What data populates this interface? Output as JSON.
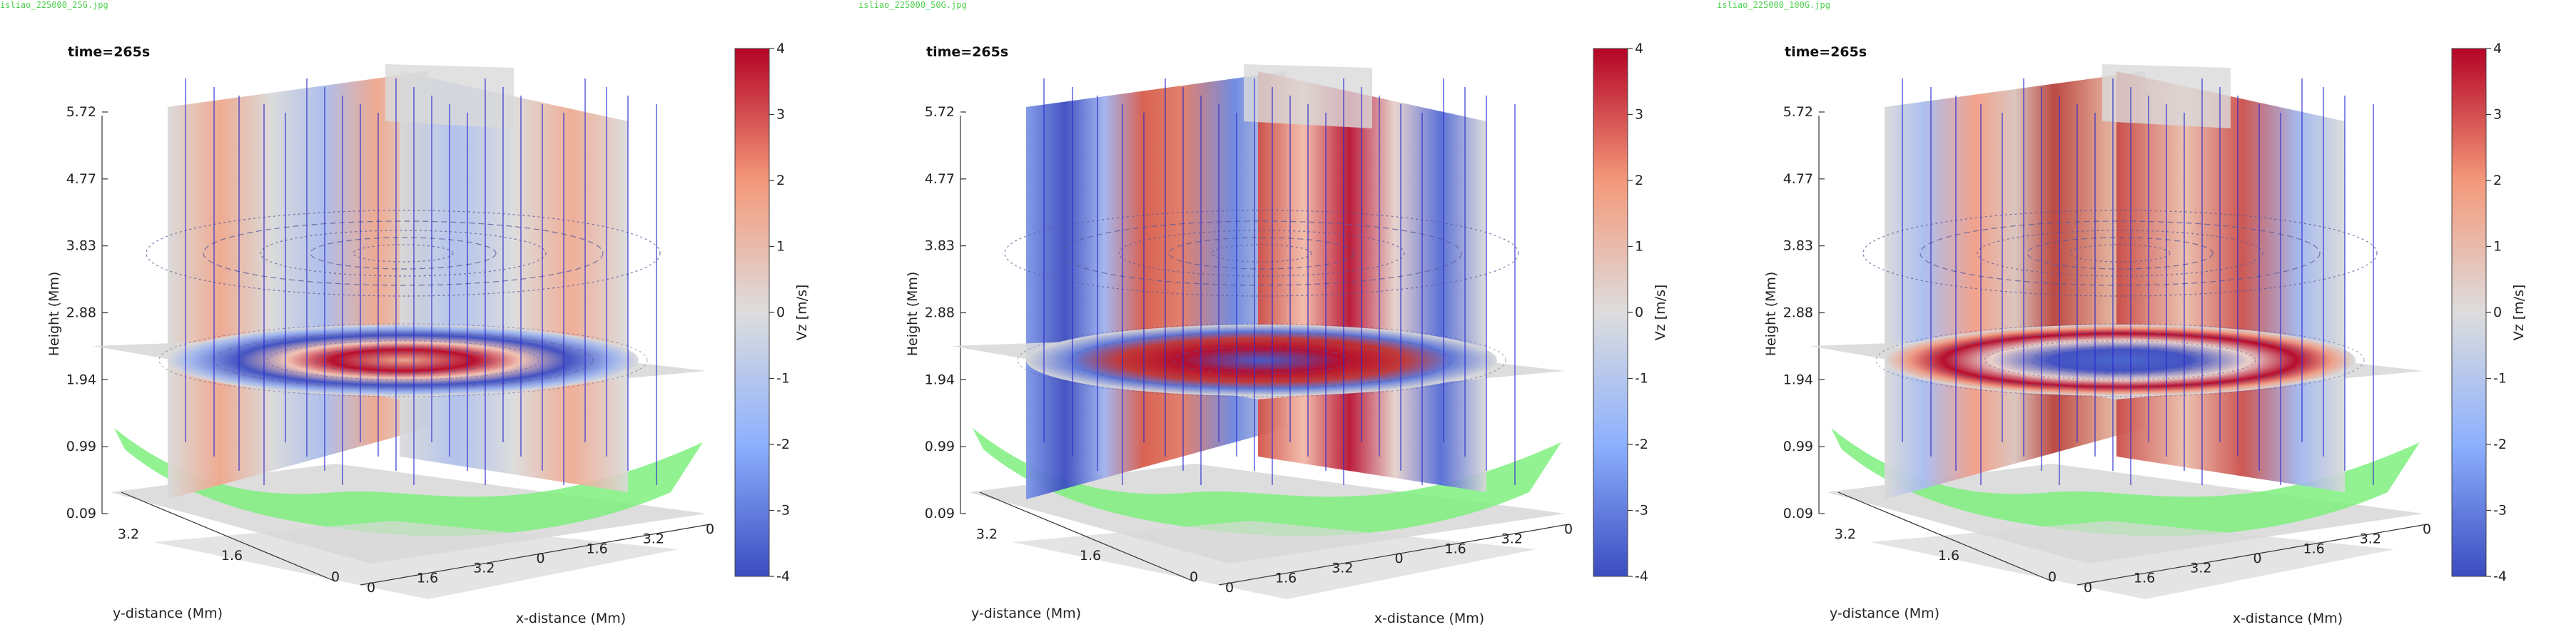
{
  "colors": {
    "cmap_low": "#3b4cc0",
    "cmap_mid": "#dddddd",
    "cmap_high": "#b40426",
    "plane_gray": "#d9d9d9",
    "iso_green": "#7ff07f",
    "field_lines": "#2a2ad0",
    "filename_green": "#4fd14f"
  },
  "chart_data": [
    {
      "type": "3d-volume-slices",
      "filename": "isliao_225000_25G.jpg",
      "time_label": "time=265s",
      "zlabel": "Height (Mm)",
      "xlabel": "x-distance (Mm)",
      "ylabel": "y-distance (Mm)",
      "z_ticks": [
        "0.09",
        "0.99",
        "1.94",
        "2.88",
        "3.83",
        "4.77",
        "5.72"
      ],
      "x_ticks": [
        "0",
        "1.6",
        "3.2",
        "0",
        "1.6",
        "3.2",
        "0"
      ],
      "y_ticks": [
        "3.2",
        "1.6",
        "0"
      ],
      "colorbar": {
        "label": "Vz [m/s]",
        "ticks": [
          "-4",
          "-3",
          "-2",
          "-1",
          "0",
          "1",
          "2",
          "3",
          "4"
        ],
        "range": [
          -4,
          4
        ]
      },
      "pattern": "ring"
    },
    {
      "type": "3d-volume-slices",
      "filename": "isliao_225000_50G.jpg",
      "time_label": "time=265s",
      "zlabel": "Height (Mm)",
      "xlabel": "x-distance (Mm)",
      "ylabel": "y-distance (Mm)",
      "z_ticks": [
        "0.09",
        "0.99",
        "1.94",
        "2.88",
        "3.83",
        "4.77",
        "5.72"
      ],
      "x_ticks": [
        "0",
        "1.6",
        "3.2",
        "0",
        "1.6",
        "3.2",
        "0"
      ],
      "y_ticks": [
        "3.2",
        "1.6",
        "0"
      ],
      "colorbar": {
        "label": "Vz [m/s]",
        "ticks": [
          "-4",
          "-3",
          "-2",
          "-1",
          "0",
          "1",
          "2",
          "3",
          "4"
        ],
        "range": [
          -4,
          4
        ]
      },
      "pattern": "checker"
    },
    {
      "type": "3d-volume-slices",
      "filename": "isliao_225000_100G.jpg",
      "time_label": "time=265s",
      "zlabel": "Height (Mm)",
      "xlabel": "x-distance (Mm)",
      "ylabel": "y-distance (Mm)",
      "z_ticks": [
        "0.09",
        "0.99",
        "1.94",
        "2.88",
        "3.83",
        "4.77",
        "5.72"
      ],
      "x_ticks": [
        "0",
        "1.6",
        "3.2",
        "0",
        "1.6",
        "3.2",
        "0"
      ],
      "y_ticks": [
        "3.2",
        "1.6",
        "0"
      ],
      "colorbar": {
        "label": "Vz [m/s]",
        "ticks": [
          "-4",
          "-3",
          "-2",
          "-1",
          "0",
          "1",
          "2",
          "3",
          "4"
        ],
        "range": [
          -4,
          4
        ]
      },
      "pattern": "ring2"
    }
  ]
}
